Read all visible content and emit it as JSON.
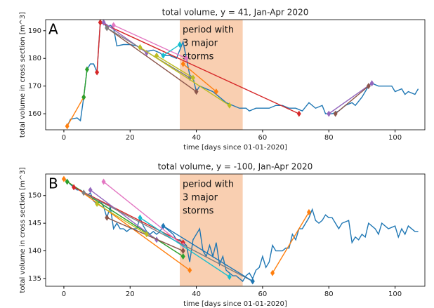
{
  "chart_data": [
    {
      "type": "line",
      "title": "total volume, y = 41, Jan-Apr 2020",
      "xlabel": "time [days since 01-01-2020]",
      "ylabel": "total volume in cross section [m^3]",
      "panel_label": "A",
      "annotation_lines": [
        "period with",
        "3 major",
        "storms"
      ],
      "span_x": [
        35,
        54
      ],
      "span_color": "#f9cfb1",
      "xlim": [
        -5.5,
        109
      ],
      "ylim": [
        154.2,
        194
      ],
      "xticks": [
        0,
        20,
        40,
        60,
        80,
        100
      ],
      "yticks": [
        160,
        170,
        180,
        190
      ],
      "series": [
        {
          "color": "#1f77b4",
          "x": [
            1,
            2,
            4,
            5,
            6,
            7,
            8,
            9,
            10,
            11,
            12,
            13,
            14,
            15,
            16,
            18,
            20,
            22,
            24,
            25,
            27,
            29,
            30,
            32,
            34,
            35,
            36,
            37,
            38,
            39,
            40,
            41,
            43,
            45,
            47,
            49,
            51,
            53,
            55,
            56,
            58,
            60,
            62,
            64,
            66,
            68,
            70,
            72,
            74,
            76,
            78,
            79,
            81,
            83,
            85,
            87,
            88,
            90,
            92,
            93,
            95,
            97,
            99,
            100,
            102,
            103,
            104,
            106,
            107
          ],
          "values": [
            155.5,
            158,
            158.5,
            157.5,
            166,
            176,
            178,
            178,
            175,
            193,
            193,
            191,
            192,
            191,
            184.5,
            185,
            185,
            184.5,
            183,
            182.5,
            183,
            182,
            181,
            181,
            180,
            183,
            186,
            180,
            174,
            173,
            168,
            170,
            169,
            168,
            166,
            164,
            163,
            162,
            162,
            161,
            162,
            162,
            162,
            163,
            163,
            162,
            162,
            161,
            164,
            162,
            163,
            160,
            160,
            161,
            163,
            164,
            163,
            166,
            170,
            171,
            170,
            170,
            170,
            168,
            169,
            167,
            168,
            167,
            169
          ]
        },
        {
          "color": "#ff7f0e",
          "marker": "D",
          "x": [
            1,
            6
          ],
          "values": [
            155.5,
            166
          ]
        },
        {
          "color": "#2ca02c",
          "marker": "D",
          "x": [
            6,
            7
          ],
          "values": [
            166,
            176
          ]
        },
        {
          "color": "#d62728",
          "marker": "D",
          "x": [
            10,
            11
          ],
          "values": [
            175,
            193
          ]
        },
        {
          "color": "#d62728",
          "marker": "D",
          "x": [
            11,
            71
          ],
          "values": [
            193,
            160
          ]
        },
        {
          "color": "#9467bd",
          "marker": "D",
          "x": [
            12,
            25
          ],
          "values": [
            193,
            182
          ]
        },
        {
          "color": "#8c564b",
          "marker": "D",
          "x": [
            13,
            40
          ],
          "values": [
            191,
            168
          ]
        },
        {
          "color": "#e377c2",
          "marker": "D",
          "x": [
            15,
            37
          ],
          "values": [
            192,
            180
          ]
        },
        {
          "color": "#7f7f7f",
          "marker": "D",
          "x": [
            13,
            38
          ],
          "values": [
            191,
            173
          ]
        },
        {
          "color": "#bcbd22",
          "marker": "D",
          "x": [
            23,
            50
          ],
          "values": [
            184,
            163
          ]
        },
        {
          "color": "#bcbd22",
          "marker": "D",
          "x": [
            28,
            39
          ],
          "values": [
            181,
            173
          ]
        },
        {
          "color": "#17becf",
          "marker": "D",
          "x": [
            30,
            35
          ],
          "values": [
            181,
            185
          ]
        },
        {
          "color": "#ff7f0e",
          "marker": "D",
          "x": [
            36,
            46
          ],
          "values": [
            178,
            168
          ]
        },
        {
          "color": "#9467bd",
          "marker": "D",
          "x": [
            80,
            93
          ],
          "values": [
            160,
            171
          ]
        },
        {
          "color": "#8c564b",
          "marker": "D",
          "x": [
            82,
            92
          ],
          "values": [
            160,
            170
          ]
        }
      ]
    },
    {
      "type": "line",
      "title": "total volume, y = -100, Jan-Apr 2020",
      "xlabel": "time [days since 01-01-2020]",
      "ylabel": "total volume in cross section [m^3]",
      "panel_label": "B",
      "annotation_lines": [
        "period with",
        "3 major",
        "storms"
      ],
      "span_x": [
        35,
        54
      ],
      "span_color": "#f9cfb1",
      "xlim": [
        -5.5,
        109
      ],
      "ylim": [
        133.6,
        153.9
      ],
      "xticks": [
        0,
        20,
        40,
        60,
        80,
        100
      ],
      "yticks": [
        135,
        140,
        145,
        150
      ],
      "series": [
        {
          "color": "#1f77b4",
          "x": [
            0,
            1,
            2,
            3,
            4,
            5,
            6,
            7,
            8,
            9,
            10,
            11,
            12,
            13,
            14,
            15,
            16,
            17,
            18,
            19,
            20,
            22,
            23,
            24,
            25,
            26,
            27,
            28,
            29,
            30,
            31,
            32,
            33,
            34,
            35,
            36,
            37,
            38,
            39,
            41,
            42,
            43,
            44,
            45,
            46,
            47,
            48,
            49,
            50,
            51,
            52,
            53,
            54,
            55,
            56,
            57,
            58,
            59,
            60,
            61,
            62,
            63,
            64,
            65,
            66,
            67,
            68,
            69,
            70,
            71,
            72,
            73,
            74,
            75,
            76,
            77,
            78,
            79,
            80,
            81,
            82,
            83,
            84,
            86,
            87,
            88,
            89,
            90,
            91,
            92,
            94,
            95,
            96,
            98,
            100,
            101,
            102,
            103,
            104,
            105,
            106,
            107
          ],
          "values": [
            153,
            152.7,
            152,
            151.5,
            151,
            151,
            150.5,
            150,
            150.5,
            149,
            148.5,
            149,
            148,
            146,
            148,
            144,
            145,
            144,
            144,
            143.5,
            144,
            144,
            146,
            144.5,
            143.5,
            143,
            143.5,
            143,
            143.5,
            144.5,
            144,
            143.5,
            143,
            142,
            142,
            141.5,
            141,
            138,
            142,
            144,
            140,
            139,
            141,
            139,
            141.5,
            137.5,
            139,
            136.5,
            136,
            135.5,
            135.5,
            135,
            134.5,
            135.5,
            136,
            135,
            136.5,
            137,
            139,
            137,
            138,
            141,
            140,
            140,
            140,
            140.5,
            140.5,
            143,
            142,
            144,
            144,
            145,
            146,
            147.5,
            145.5,
            145,
            145.5,
            146.5,
            146,
            146,
            145,
            144,
            145,
            145.5,
            141.5,
            142.5,
            142,
            143,
            142.5,
            145,
            144,
            143,
            145,
            144,
            144.5,
            142.5,
            144,
            143,
            144.5,
            144,
            143.5,
            143.5
          ]
        },
        {
          "color": "#ff7f0e",
          "marker": "D",
          "x": [
            0,
            38
          ],
          "values": [
            153,
            136.5
          ]
        },
        {
          "color": "#2ca02c",
          "marker": "D",
          "x": [
            1,
            36
          ],
          "values": [
            152.5,
            139
          ]
        },
        {
          "color": "#d62728",
          "marker": "D",
          "x": [
            3,
            36
          ],
          "values": [
            151.5,
            141.5
          ]
        },
        {
          "color": "#9467bd",
          "marker": "D",
          "x": [
            8,
            28
          ],
          "values": [
            151,
            142
          ]
        },
        {
          "color": "#8c564b",
          "marker": "D",
          "x": [
            13,
            36
          ],
          "values": [
            146,
            140
          ]
        },
        {
          "color": "#e377c2",
          "marker": "D",
          "x": [
            12,
            36
          ],
          "values": [
            152.5,
            141
          ]
        },
        {
          "color": "#7f7f7f",
          "marker": "D",
          "x": [
            6,
            57
          ],
          "values": [
            150.5,
            134.5
          ]
        },
        {
          "color": "#bcbd22",
          "marker": "D",
          "x": [
            10,
            25
          ],
          "values": [
            148.5,
            143
          ]
        },
        {
          "color": "#17becf",
          "marker": "D",
          "x": [
            23,
            50
          ],
          "values": [
            146,
            135.3
          ]
        },
        {
          "color": "#1f77b4",
          "marker": "D",
          "x": [
            30,
            57
          ],
          "values": [
            144.5,
            134.5
          ]
        },
        {
          "color": "#ff7f0e",
          "marker": "D",
          "x": [
            63,
            74
          ],
          "values": [
            136,
            147
          ]
        }
      ]
    }
  ]
}
